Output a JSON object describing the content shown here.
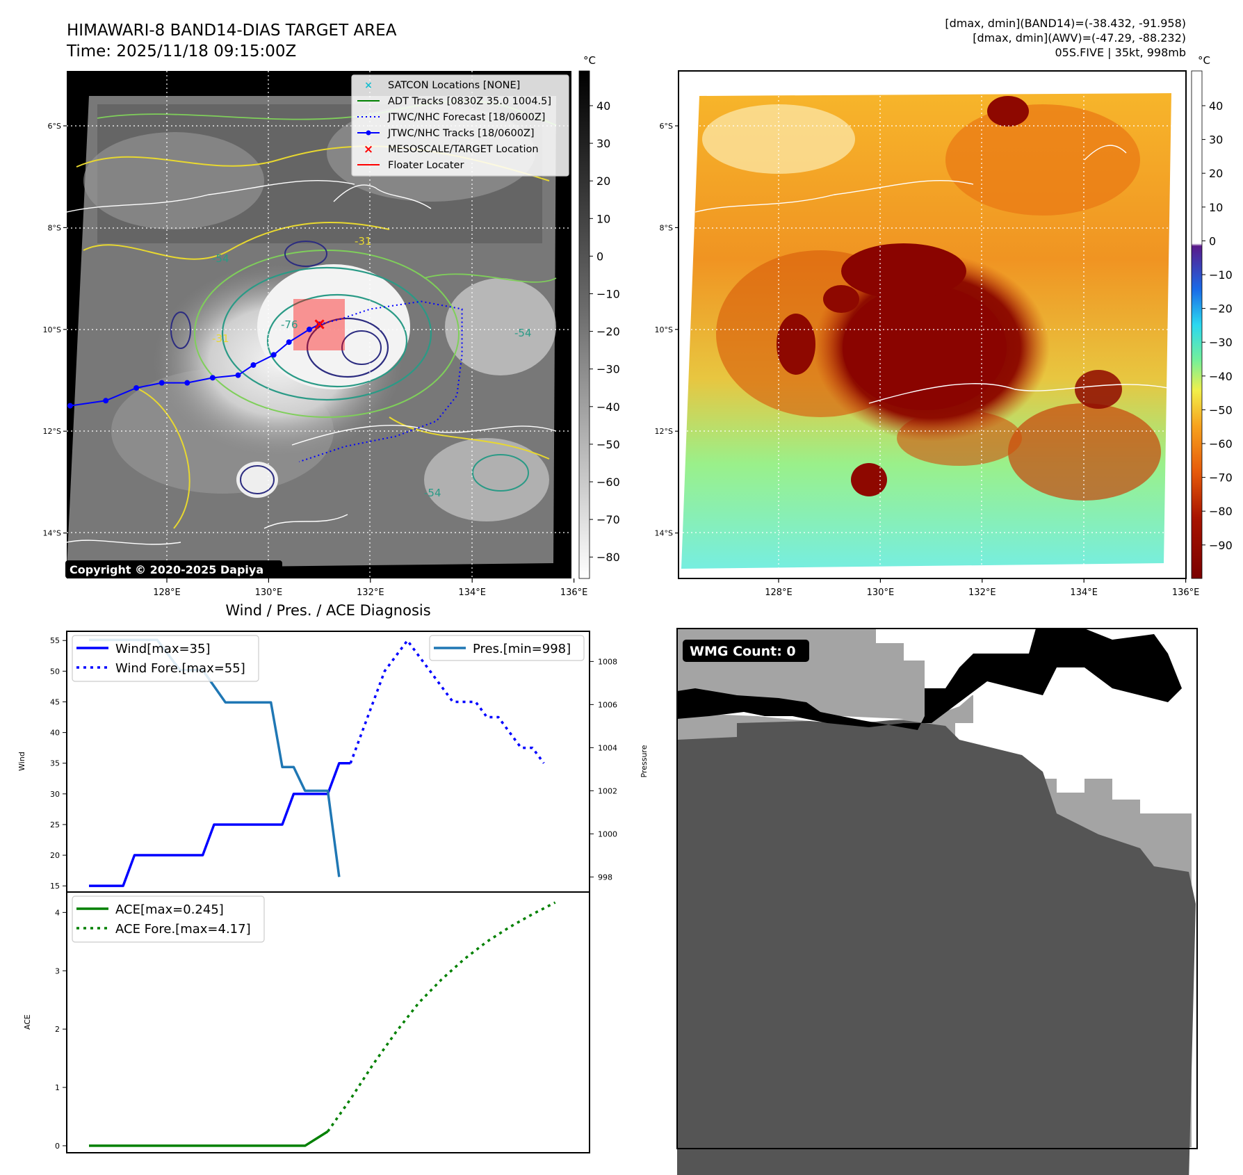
{
  "header": {
    "title": "HIMAWARI-8 BAND14-DIAS TARGET AREA",
    "time": "Time: 2025/11/18 09:15:00Z",
    "info_line1": "[dmax, dmin](BAND14)=(-38.432, -91.958)",
    "info_line2": "[dmax, dmin](AWV)=(-47.29, -88.232)",
    "info_line3": "05S.FIVE | 35kt, 998mb"
  },
  "map_axes": {
    "lat_labels": [
      "6°S",
      "8°S",
      "10°S",
      "12°S",
      "14°S"
    ],
    "lon_labels": [
      "128°E",
      "130°E",
      "132°E",
      "134°E",
      "136°E"
    ]
  },
  "ir_map": {
    "copyright": "Copyright © 2020-2025 Dapiya",
    "contour_labels": [
      "-54",
      "-31",
      "-76",
      "-54",
      "-31",
      "-54"
    ],
    "legend": [
      {
        "label": "SATCON Locations [NONE]",
        "color": "#17becf"
      },
      {
        "label": "ADT Tracks [0830Z 35.0 1004.5]",
        "color": "#008000"
      },
      {
        "label": "JTWC/NHC Forecast [18/0600Z]",
        "color": "#0000ff"
      },
      {
        "label": "JTWC/NHC Tracks [18/0600Z]",
        "color": "#0000ff"
      },
      {
        "label": "MESOSCALE/TARGET Location",
        "color": "#ff0000"
      },
      {
        "label": "Floater Locater",
        "color": "#ff0000"
      }
    ],
    "track_lonlat": [
      [
        126.1,
        -11.5
      ],
      [
        126.8,
        -11.4
      ],
      [
        127.4,
        -11.15
      ],
      [
        127.9,
        -11.05
      ],
      [
        128.4,
        -11.05
      ],
      [
        128.9,
        -10.95
      ],
      [
        129.4,
        -10.9
      ],
      [
        129.7,
        -10.7
      ],
      [
        130.1,
        -10.5
      ],
      [
        130.4,
        -10.25
      ],
      [
        130.8,
        -10.0
      ],
      [
        131.0,
        -9.9
      ]
    ],
    "forecast_lonlat": [
      [
        131.0,
        -9.9
      ],
      [
        131.4,
        -9.8
      ],
      [
        132.0,
        -9.6
      ],
      [
        133.0,
        -9.45
      ],
      [
        133.8,
        -9.6
      ],
      [
        133.8,
        -10.5
      ],
      [
        133.7,
        -11.3
      ],
      [
        133.3,
        -11.8
      ],
      [
        132.5,
        -12.1
      ],
      [
        131.5,
        -12.3
      ],
      [
        130.6,
        -12.6
      ]
    ],
    "target_lonlat": [
      131.0,
      -9.9
    ],
    "colorbar_unit": "°C",
    "colorbar_ticks": [
      "40",
      "30",
      "20",
      "10",
      "0",
      "−10",
      "−20",
      "−30",
      "−40",
      "−50",
      "−60",
      "−70",
      "−80"
    ]
  },
  "awv_map": {
    "colorbar_unit": "°C",
    "colorbar_ticks": [
      "40",
      "30",
      "20",
      "10",
      "0",
      "−10",
      "−20",
      "−30",
      "−40",
      "−50",
      "−60",
      "−70",
      "−80",
      "−90"
    ]
  },
  "diagnosis": {
    "title": "Wind / Pres. / ACE Diagnosis"
  },
  "wmg": {
    "label": "WMG Count: 0"
  },
  "chart_data": [
    {
      "type": "line",
      "title": "Wind / Pres. / ACE Diagnosis",
      "ylabel": "Wind",
      "y2label": "Pressure",
      "ylim": [
        14,
        56.5
      ],
      "y2lim": [
        997.3,
        1009.4
      ],
      "y_ticks": [
        15,
        20,
        25,
        30,
        35,
        40,
        45,
        50,
        55
      ],
      "y2_ticks": [
        998,
        1000,
        1002,
        1004,
        1006,
        1008
      ],
      "x_range": [
        0,
        21
      ],
      "series": [
        {
          "name": "Wind[max=35]",
          "style": "solid",
          "color": "#0000ff",
          "x": [
            0,
            1.5,
            2,
            5,
            5.5,
            8.5,
            9,
            10.5,
            11,
            11.5
          ],
          "values": [
            15,
            15,
            20,
            20,
            25,
            25,
            30,
            30,
            35,
            35
          ]
        },
        {
          "name": "Wind Fore.[max=55]",
          "style": "dotted",
          "color": "#0000ff",
          "x": [
            11.5,
            12,
            12.5,
            13,
            14,
            15,
            16,
            16.5,
            17,
            17.5,
            18,
            18.5,
            19,
            19.5,
            20
          ],
          "values": [
            35,
            40,
            45,
            50,
            55,
            50,
            45,
            45,
            45,
            42.5,
            42.5,
            40,
            37.5,
            37.5,
            35
          ]
        },
        {
          "name": "Pres.[min=998]",
          "style": "solid",
          "color": "#1f77b4",
          "axis": "right",
          "x": [
            0,
            3,
            4,
            5,
            6,
            8,
            8.5,
            9,
            9.5,
            10,
            10.5,
            11
          ],
          "values": [
            1009,
            1009,
            1007.6,
            1007.6,
            1006.1,
            1006.1,
            1003.1,
            1003.1,
            1002.0,
            1002.0,
            1002.0,
            998
          ]
        }
      ]
    },
    {
      "type": "line",
      "ylabel": "ACE",
      "ylim": [
        -0.12,
        4.35
      ],
      "y_ticks": [
        0,
        1,
        2,
        3,
        4
      ],
      "x_range": [
        0,
        21
      ],
      "series": [
        {
          "name": "ACE[max=0.245]",
          "style": "solid",
          "color": "#008000",
          "x": [
            0,
            9.5,
            10.5
          ],
          "values": [
            0,
            0,
            0.245
          ]
        },
        {
          "name": "ACE Fore.[max=4.17]",
          "style": "dotted",
          "color": "#008000",
          "x": [
            10.5,
            11.5,
            12.5,
            13.5,
            14.5,
            15.5,
            16.5,
            17.5,
            18.5,
            19.5,
            20.5
          ],
          "values": [
            0.245,
            0.8,
            1.4,
            1.95,
            2.45,
            2.85,
            3.2,
            3.5,
            3.75,
            3.97,
            4.17
          ]
        }
      ]
    }
  ]
}
